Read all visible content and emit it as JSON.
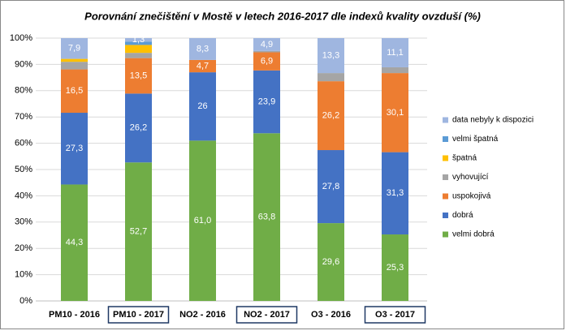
{
  "chart_data": {
    "type": "stacked-bar",
    "title": "Porovnání znečištění v Mostě v letech 2016-2017 dle indexů kvality ovzduší (%)",
    "categories": [
      "PM10 - 2016",
      "PM10 - 2017",
      "NO2 - 2016",
      "NO2 - 2017",
      "O3 - 2016",
      "O3 - 2017"
    ],
    "boxed_categories": [
      false,
      true,
      false,
      true,
      false,
      true
    ],
    "ylim": [
      0,
      100
    ],
    "yticks": [
      {
        "value": 0,
        "label": "0%"
      },
      {
        "value": 10,
        "label": "10%"
      },
      {
        "value": 20,
        "label": "20%"
      },
      {
        "value": 30,
        "label": "30%"
      },
      {
        "value": 40,
        "label": "40%"
      },
      {
        "value": 50,
        "label": "50%"
      },
      {
        "value": 60,
        "label": "60%"
      },
      {
        "value": 70,
        "label": "70%"
      },
      {
        "value": 80,
        "label": "80%"
      },
      {
        "value": 90,
        "label": "90%"
      },
      {
        "value": 100,
        "label": "100%"
      }
    ],
    "grid": true,
    "legend": "right",
    "series": [
      {
        "name": "velmi dobrá",
        "color": "#70ad47",
        "values": [
          44.3,
          52.7,
          61.0,
          63.8,
          29.6,
          25.3
        ],
        "value_labels": [
          "44,3",
          "52,7",
          "61,0",
          "63,8",
          "29,6",
          "25,3"
        ]
      },
      {
        "name": "dobrá",
        "color": "#4472c4",
        "values": [
          27.3,
          26.2,
          26,
          23.9,
          27.8,
          31.3
        ],
        "value_labels": [
          "27,3",
          "26,2",
          "26",
          "23,9",
          "27,8",
          "31,3"
        ]
      },
      {
        "name": "uspokojivá",
        "color": "#ed7d31",
        "values": [
          16.5,
          13.5,
          4.7,
          6.9,
          26.2,
          30.1
        ],
        "value_labels": [
          "16,5",
          "13,5",
          "4,7",
          "6,9",
          "26,2",
          "30,1"
        ]
      },
      {
        "name": "vyhovující",
        "color": "#a5a5a5",
        "values": [
          2.9,
          2.0,
          0,
          0.5,
          3.1,
          2.2
        ]
      },
      {
        "name": "špatná",
        "color": "#ffc000",
        "values": [
          1.1,
          3.0,
          0,
          0,
          0,
          0
        ]
      },
      {
        "name": "velmi špatná",
        "color": "#5b9bd5",
        "values": [
          0,
          1.3,
          0,
          0,
          0,
          0
        ]
      },
      {
        "name": "data nebyly k dispozici",
        "color": "#9fb6e0",
        "values": [
          7.9,
          1.3,
          8.3,
          4.9,
          13.3,
          11.1
        ],
        "value_labels": [
          "7,9",
          "1,3",
          "8,3",
          "4,9",
          "13,3",
          "11,1"
        ]
      }
    ]
  }
}
